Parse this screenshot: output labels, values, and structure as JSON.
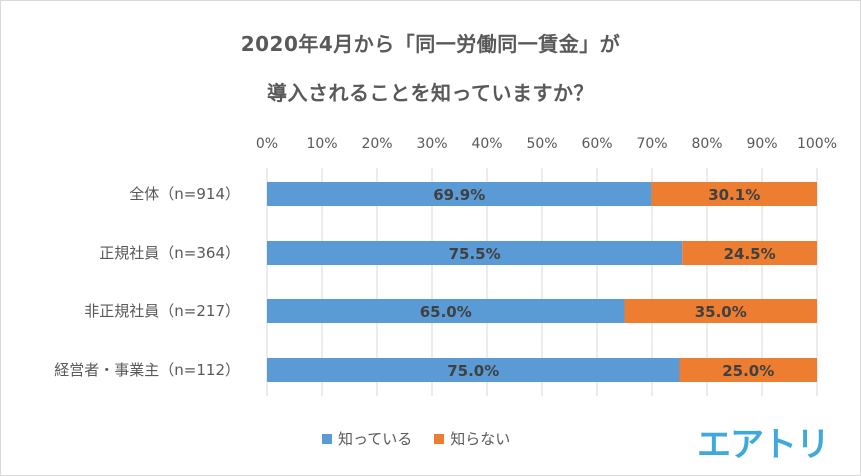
{
  "title": {
    "line1": "2020年4月から「同一労働同一賃金」が",
    "line2": "導入されることを知っていますか？"
  },
  "chart_data": {
    "type": "bar",
    "orientation": "horizontal",
    "stacked": true,
    "categories": [
      "全体（n=914）",
      "正規社員（n=364）",
      "非正規社員（n=217）",
      "経営者・事業主（n=112）"
    ],
    "series": [
      {
        "name": "知っている",
        "color": "#5b9bd5",
        "values": [
          69.9,
          75.5,
          65.0,
          75.0
        ]
      },
      {
        "name": "知らない",
        "color": "#ed7d31",
        "values": [
          30.1,
          24.5,
          35.0,
          25.0
        ]
      }
    ],
    "xlim": [
      0,
      100
    ],
    "xticks": [
      "0%",
      "10%",
      "20%",
      "30%",
      "40%",
      "50%",
      "60%",
      "70%",
      "80%",
      "90%",
      "100%"
    ],
    "grid": true,
    "legend_position": "bottom",
    "value_suffix": "%"
  },
  "brand": {
    "label": "エアトリ",
    "color": "#3fa9dd"
  }
}
